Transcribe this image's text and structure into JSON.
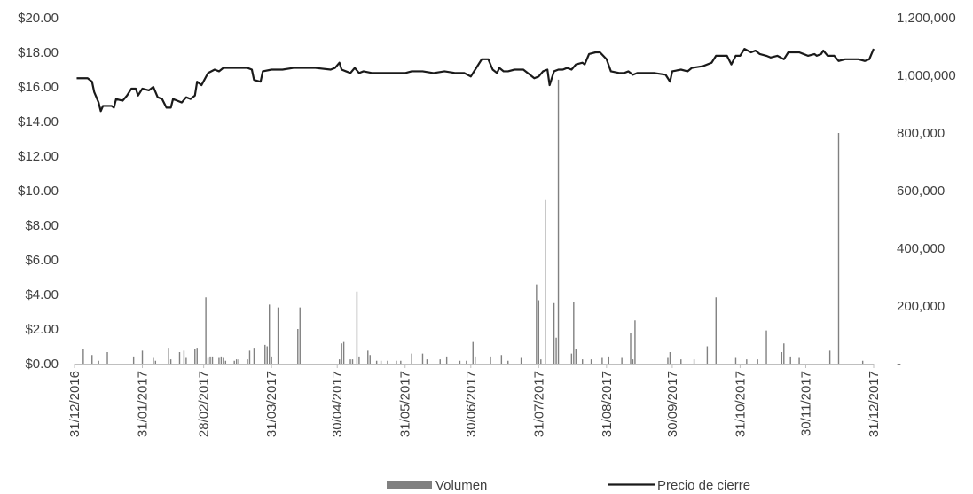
{
  "chart_data": {
    "type": "bar+line",
    "title": "",
    "x_ticks": [
      "31/12/2016",
      "31/01/2017",
      "28/02/2017",
      "31/03/2017",
      "30/04/2017",
      "31/05/2017",
      "30/06/2017",
      "31/07/2017",
      "31/08/2017",
      "30/09/2017",
      "31/10/2017",
      "30/11/2017",
      "31/12/2017"
    ],
    "y_left": {
      "min": 0,
      "max": 20,
      "ticks": [
        "$0.00",
        "$2.00",
        "$4.00",
        "$6.00",
        "$8.00",
        "$10.00",
        "$12.00",
        "$14.00",
        "$16.00",
        "$18.00",
        "$20.00"
      ]
    },
    "y_right": {
      "min": 0,
      "max": 1200000,
      "ticks": [
        "-",
        "200,000",
        "400,000",
        "600,000",
        "800,000",
        "1,000,000",
        "1,200,000"
      ]
    },
    "legend": {
      "position": "bottom",
      "items": [
        "Volumen",
        "Precio de cierre"
      ]
    },
    "colors": {
      "volume": "#808080",
      "price": "#1a1a1a"
    },
    "series": [
      {
        "name": "Precio de cierre",
        "type": "line",
        "axis": "left",
        "points": [
          [
            "2017-01-01",
            16.5
          ],
          [
            "2017-01-06",
            16.5
          ],
          [
            "2017-01-08",
            16.3
          ],
          [
            "2017-01-09",
            15.7
          ],
          [
            "2017-01-11",
            15.1
          ],
          [
            "2017-01-12",
            14.6
          ],
          [
            "2017-01-13",
            14.9
          ],
          [
            "2017-01-17",
            14.9
          ],
          [
            "2017-01-18",
            14.8
          ],
          [
            "2017-01-19",
            15.3
          ],
          [
            "2017-01-22",
            15.2
          ],
          [
            "2017-01-24",
            15.5
          ],
          [
            "2017-01-26",
            15.9
          ],
          [
            "2017-01-28",
            15.9
          ],
          [
            "2017-01-29",
            15.5
          ],
          [
            "2017-01-31",
            15.9
          ],
          [
            "2017-02-03",
            15.8
          ],
          [
            "2017-02-05",
            16.0
          ],
          [
            "2017-02-07",
            15.4
          ],
          [
            "2017-02-09",
            15.3
          ],
          [
            "2017-02-11",
            14.8
          ],
          [
            "2017-02-13",
            14.8
          ],
          [
            "2017-02-14",
            15.3
          ],
          [
            "2017-02-16",
            15.2
          ],
          [
            "2017-02-18",
            15.1
          ],
          [
            "2017-02-20",
            15.4
          ],
          [
            "2017-02-22",
            15.3
          ],
          [
            "2017-02-24",
            15.5
          ],
          [
            "2017-02-25",
            16.3
          ],
          [
            "2017-02-27",
            16.1
          ],
          [
            "2017-03-02",
            16.8
          ],
          [
            "2017-03-05",
            17.0
          ],
          [
            "2017-03-07",
            16.9
          ],
          [
            "2017-03-09",
            17.1
          ],
          [
            "2017-03-15",
            17.1
          ],
          [
            "2017-03-20",
            17.1
          ],
          [
            "2017-03-22",
            17.0
          ],
          [
            "2017-03-23",
            16.4
          ],
          [
            "2017-03-26",
            16.3
          ],
          [
            "2017-03-27",
            16.9
          ],
          [
            "2017-03-31",
            17.0
          ],
          [
            "2017-04-05",
            17.0
          ],
          [
            "2017-04-10",
            17.1
          ],
          [
            "2017-04-15",
            17.1
          ],
          [
            "2017-04-20",
            17.1
          ],
          [
            "2017-04-27",
            17.0
          ],
          [
            "2017-04-29",
            17.1
          ],
          [
            "2017-05-01",
            17.4
          ],
          [
            "2017-05-02",
            17.0
          ],
          [
            "2017-05-04",
            16.9
          ],
          [
            "2017-05-06",
            16.8
          ],
          [
            "2017-05-08",
            17.1
          ],
          [
            "2017-05-10",
            16.8
          ],
          [
            "2017-05-12",
            16.9
          ],
          [
            "2017-05-16",
            16.8
          ],
          [
            "2017-05-21",
            16.8
          ],
          [
            "2017-05-26",
            16.8
          ],
          [
            "2017-05-31",
            16.8
          ],
          [
            "2017-06-03",
            16.9
          ],
          [
            "2017-06-08",
            16.9
          ],
          [
            "2017-06-13",
            16.8
          ],
          [
            "2017-06-18",
            16.9
          ],
          [
            "2017-06-23",
            16.8
          ],
          [
            "2017-06-27",
            16.8
          ],
          [
            "2017-06-30",
            16.6
          ],
          [
            "2017-07-03",
            17.2
          ],
          [
            "2017-07-05",
            17.6
          ],
          [
            "2017-07-08",
            17.6
          ],
          [
            "2017-07-10",
            17.0
          ],
          [
            "2017-07-12",
            16.8
          ],
          [
            "2017-07-13",
            17.1
          ],
          [
            "2017-07-15",
            16.9
          ],
          [
            "2017-07-17",
            16.9
          ],
          [
            "2017-07-20",
            17.0
          ],
          [
            "2017-07-24",
            17.0
          ],
          [
            "2017-07-26",
            16.8
          ],
          [
            "2017-07-29",
            16.5
          ],
          [
            "2017-07-31",
            16.6
          ],
          [
            "2017-08-02",
            16.9
          ],
          [
            "2017-08-04",
            17.0
          ],
          [
            "2017-08-05",
            16.1
          ],
          [
            "2017-08-07",
            16.9
          ],
          [
            "2017-08-09",
            17.0
          ],
          [
            "2017-08-11",
            17.0
          ],
          [
            "2017-08-13",
            17.1
          ],
          [
            "2017-08-15",
            17.0
          ],
          [
            "2017-08-17",
            17.3
          ],
          [
            "2017-08-20",
            17.4
          ],
          [
            "2017-08-21",
            17.3
          ],
          [
            "2017-08-23",
            17.9
          ],
          [
            "2017-08-26",
            18.0
          ],
          [
            "2017-08-28",
            18.0
          ],
          [
            "2017-08-31",
            17.6
          ],
          [
            "2017-09-02",
            16.9
          ],
          [
            "2017-09-06",
            16.8
          ],
          [
            "2017-09-08",
            16.8
          ],
          [
            "2017-09-10",
            16.9
          ],
          [
            "2017-09-12",
            16.7
          ],
          [
            "2017-09-14",
            16.8
          ],
          [
            "2017-09-17",
            16.8
          ],
          [
            "2017-09-22",
            16.8
          ],
          [
            "2017-09-27",
            16.7
          ],
          [
            "2017-09-29",
            16.3
          ],
          [
            "2017-09-30",
            16.9
          ],
          [
            "2017-10-04",
            17.0
          ],
          [
            "2017-10-07",
            16.9
          ],
          [
            "2017-10-09",
            17.1
          ],
          [
            "2017-10-14",
            17.2
          ],
          [
            "2017-10-18",
            17.4
          ],
          [
            "2017-10-20",
            17.8
          ],
          [
            "2017-10-25",
            17.8
          ],
          [
            "2017-10-27",
            17.3
          ],
          [
            "2017-10-29",
            17.8
          ],
          [
            "2017-10-31",
            17.8
          ],
          [
            "2017-11-02",
            18.2
          ],
          [
            "2017-11-05",
            18.0
          ],
          [
            "2017-11-07",
            18.1
          ],
          [
            "2017-11-09",
            17.9
          ],
          [
            "2017-11-12",
            17.8
          ],
          [
            "2017-11-14",
            17.7
          ],
          [
            "2017-11-17",
            17.8
          ],
          [
            "2017-11-20",
            17.6
          ],
          [
            "2017-11-22",
            18.0
          ],
          [
            "2017-11-24",
            18.0
          ],
          [
            "2017-11-27",
            18.0
          ],
          [
            "2017-11-29",
            17.9
          ],
          [
            "2017-12-01",
            17.8
          ],
          [
            "2017-12-04",
            17.9
          ],
          [
            "2017-12-05",
            17.8
          ],
          [
            "2017-12-07",
            17.9
          ],
          [
            "2017-12-08",
            18.1
          ],
          [
            "2017-12-10",
            17.8
          ],
          [
            "2017-12-13",
            17.8
          ],
          [
            "2017-12-15",
            17.5
          ],
          [
            "2017-12-18",
            17.6
          ],
          [
            "2017-12-20",
            17.6
          ],
          [
            "2017-12-22",
            17.6
          ],
          [
            "2017-12-24",
            17.6
          ],
          [
            "2017-12-27",
            17.5
          ],
          [
            "2017-12-29",
            17.6
          ],
          [
            "2017-12-31",
            18.2
          ]
        ]
      },
      {
        "name": "Volumen",
        "type": "bar",
        "axis": "right",
        "points": [
          [
            "2017-01-04",
            50000
          ],
          [
            "2017-01-08",
            30000
          ],
          [
            "2017-01-11",
            10000
          ],
          [
            "2017-01-15",
            40000
          ],
          [
            "2017-01-27",
            25000
          ],
          [
            "2017-01-31",
            45000
          ],
          [
            "2017-02-05",
            20000
          ],
          [
            "2017-02-06",
            10000
          ],
          [
            "2017-02-12",
            55000
          ],
          [
            "2017-02-13",
            15000
          ],
          [
            "2017-02-17",
            40000
          ],
          [
            "2017-02-19",
            45000
          ],
          [
            "2017-02-20",
            20000
          ],
          [
            "2017-02-24",
            50000
          ],
          [
            "2017-02-25",
            55000
          ],
          [
            "2017-03-01",
            230000
          ],
          [
            "2017-03-02",
            20000
          ],
          [
            "2017-03-03",
            25000
          ],
          [
            "2017-03-04",
            25000
          ],
          [
            "2017-03-07",
            20000
          ],
          [
            "2017-03-08",
            25000
          ],
          [
            "2017-03-09",
            20000
          ],
          [
            "2017-03-10",
            10000
          ],
          [
            "2017-03-14",
            10000
          ],
          [
            "2017-03-15",
            15000
          ],
          [
            "2017-03-16",
            15000
          ],
          [
            "2017-03-20",
            15000
          ],
          [
            "2017-03-21",
            45000
          ],
          [
            "2017-03-23",
            55000
          ],
          [
            "2017-03-28",
            65000
          ],
          [
            "2017-03-29",
            60000
          ],
          [
            "2017-03-30",
            205000
          ],
          [
            "2017-03-31",
            25000
          ],
          [
            "2017-04-03",
            195000
          ],
          [
            "2017-04-12",
            120000
          ],
          [
            "2017-04-13",
            195000
          ],
          [
            "2017-05-01",
            15000
          ],
          [
            "2017-05-02",
            70000
          ],
          [
            "2017-05-03",
            75000
          ],
          [
            "2017-05-06",
            15000
          ],
          [
            "2017-05-07",
            15000
          ],
          [
            "2017-05-09",
            250000
          ],
          [
            "2017-05-10",
            25000
          ],
          [
            "2017-05-14",
            45000
          ],
          [
            "2017-05-15",
            30000
          ],
          [
            "2017-05-18",
            10000
          ],
          [
            "2017-05-20",
            10000
          ],
          [
            "2017-05-23",
            10000
          ],
          [
            "2017-05-27",
            10000
          ],
          [
            "2017-05-29",
            10000
          ],
          [
            "2017-06-03",
            35000
          ],
          [
            "2017-06-08",
            35000
          ],
          [
            "2017-06-10",
            15000
          ],
          [
            "2017-06-16",
            15000
          ],
          [
            "2017-06-19",
            25000
          ],
          [
            "2017-06-25",
            10000
          ],
          [
            "2017-06-28",
            10000
          ],
          [
            "2017-07-01",
            75000
          ],
          [
            "2017-07-02",
            25000
          ],
          [
            "2017-07-09",
            25000
          ],
          [
            "2017-07-14",
            30000
          ],
          [
            "2017-07-17",
            10000
          ],
          [
            "2017-07-23",
            20000
          ],
          [
            "2017-07-30",
            275000
          ],
          [
            "2017-07-31",
            220000
          ],
          [
            "2017-08-01",
            15000
          ],
          [
            "2017-08-03",
            570000
          ],
          [
            "2017-08-07",
            210000
          ],
          [
            "2017-08-08",
            90000
          ],
          [
            "2017-08-09",
            985000
          ],
          [
            "2017-08-15",
            35000
          ],
          [
            "2017-08-16",
            215000
          ],
          [
            "2017-08-17",
            50000
          ],
          [
            "2017-08-20",
            15000
          ],
          [
            "2017-08-24",
            15000
          ],
          [
            "2017-08-29",
            20000
          ],
          [
            "2017-09-01",
            25000
          ],
          [
            "2017-09-07",
            20000
          ],
          [
            "2017-09-11",
            105000
          ],
          [
            "2017-09-12",
            15000
          ],
          [
            "2017-09-13",
            150000
          ],
          [
            "2017-09-28",
            20000
          ],
          [
            "2017-09-29",
            40000
          ],
          [
            "2017-10-04",
            15000
          ],
          [
            "2017-10-10",
            15000
          ],
          [
            "2017-10-16",
            60000
          ],
          [
            "2017-10-20",
            230000
          ],
          [
            "2017-10-29",
            20000
          ],
          [
            "2017-11-03",
            15000
          ],
          [
            "2017-11-08",
            15000
          ],
          [
            "2017-11-12",
            115000
          ],
          [
            "2017-11-19",
            40000
          ],
          [
            "2017-11-20",
            70000
          ],
          [
            "2017-11-23",
            25000
          ],
          [
            "2017-11-27",
            20000
          ],
          [
            "2017-12-11",
            45000
          ],
          [
            "2017-12-15",
            800000
          ],
          [
            "2017-12-26",
            10000
          ]
        ]
      }
    ]
  }
}
